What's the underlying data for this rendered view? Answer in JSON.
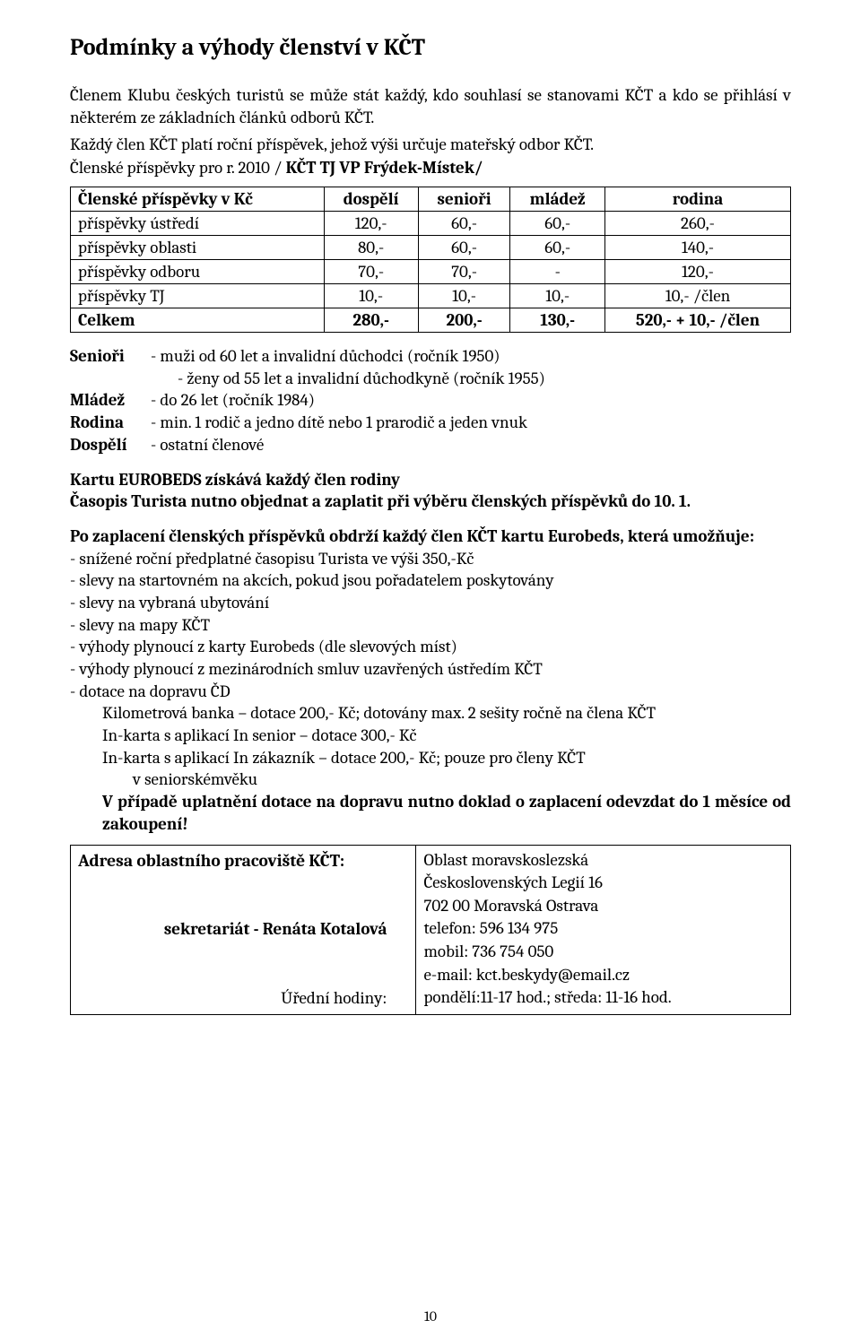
{
  "title": "Podmínky a výhody členství v KČT",
  "intro1": "Členem Klubu českých turistů se může stát každý, kdo souhlasí se stanovami KČT a kdo se přihlásí v některém ze základních článků odborů KČT.",
  "intro2": "Každý člen KČT platí roční příspěvek, jehož výši určuje mateřský odbor KČT.",
  "sub_prefix": "Členské příspěvky pro r. 2010 / ",
  "sub_bold": "KČT  TJ VP Frýdek-Místek/",
  "table": {
    "headers": [
      "Členské příspěvky v Kč",
      "dospělí",
      "senioři",
      "mládež",
      "rodina"
    ],
    "rows": [
      {
        "label": "příspěvky ústředí",
        "c1": "120,-",
        "c2": "60,-",
        "c3": "60,-",
        "c4": "260,-"
      },
      {
        "label": "příspěvky oblasti",
        "c1": "80,-",
        "c2": "60,-",
        "c3": "60,-",
        "c4": "140,-"
      },
      {
        "label": "příspěvky odboru",
        "c1": "70,-",
        "c2": "70,-",
        "c3": "-",
        "c4": "120,-"
      },
      {
        "label": "příspěvky TJ",
        "c1": "10,-",
        "c2": "10,-",
        "c3": "10,-",
        "c4": "10,- /člen"
      }
    ],
    "total": {
      "label": "Celkem",
      "c1": "280,-",
      "c2": "200,-",
      "c3": "130,-",
      "c4": "520,- + 10,- /člen"
    }
  },
  "defs": {
    "seniori_l": "Senioři",
    "seniori_t1": "- muži od 60 let a invalidní důchodci (ročník 1950)",
    "seniori_t2": "- ženy od 55 let a invalidní důchodkyně (ročník 1955)",
    "mladez_l": "Mládež",
    "mladez_t": "- do 26 let (ročník 1984)",
    "rodina_l": "Rodina",
    "rodina_t": "- min. 1 rodič a jedno dítě nebo 1 prarodič a jeden vnuk",
    "dospeli_l": "Dospělí",
    "dospeli_t": "- ostatní členové"
  },
  "boldblock": {
    "l1": "Kartu EUROBEDS získává každý člen rodiny",
    "l2": "Časopis Turista nutno objednat a zaplatit při výběru členských příspěvků do 10. 1."
  },
  "afterpay_bold": "Po zaplacení členských příspěvků obdrží každý člen KČT kartu Eurobeds, která umožňuje:",
  "benefits": {
    "b1": "- snížené roční předplatné časopisu Turista ve výši 350,-Kč",
    "b2": "- slevy na startovném na akcích, pokud jsou pořadatelem poskytovány",
    "b3": "- slevy na vybraná ubytování",
    "b4": "- slevy na mapy KČT",
    "b5": "- výhody plynoucí z karty Eurobeds (dle slevových míst)",
    "b6": "- výhody plynoucí z mezinárodních smluv uzavřených ústředím KČT",
    "b7": "- dotace na dopravu ČD",
    "b7a": "Kilometrová banka – dotace 200,- Kč; dotovány max. 2 sešity ročně na člena KČT",
    "b7b": "In-karta s aplikací In senior – dotace 300,- Kč",
    "b7c": "In-karta s aplikací In zákazník – dotace 200,- Kč; pouze pro členy KČT",
    "b7c2": "v seniorskémvěku",
    "b7d": "V případě uplatnění dotace na dopravu nutno doklad o zaplacení  odevzdat do 1 měsíce od zakoupení!"
  },
  "addr": {
    "title": "Adresa oblastního pracoviště KČT:",
    "sek": "sekretariát - Renáta Kotalová",
    "hours_l": "Úřední hodiny:",
    "r1": "Oblast moravskoslezská",
    "r2": "Československých Legií 16",
    "r3": "702 00 Moravská Ostrava",
    "r4": "telefon: 596 134 975",
    "r5": "mobil: 736 754 050",
    "r6": "e-mail: kct.beskydy@email.cz",
    "r7": "pondělí:11-17 hod.; středa: 11-16 hod."
  },
  "pagenum": "10"
}
